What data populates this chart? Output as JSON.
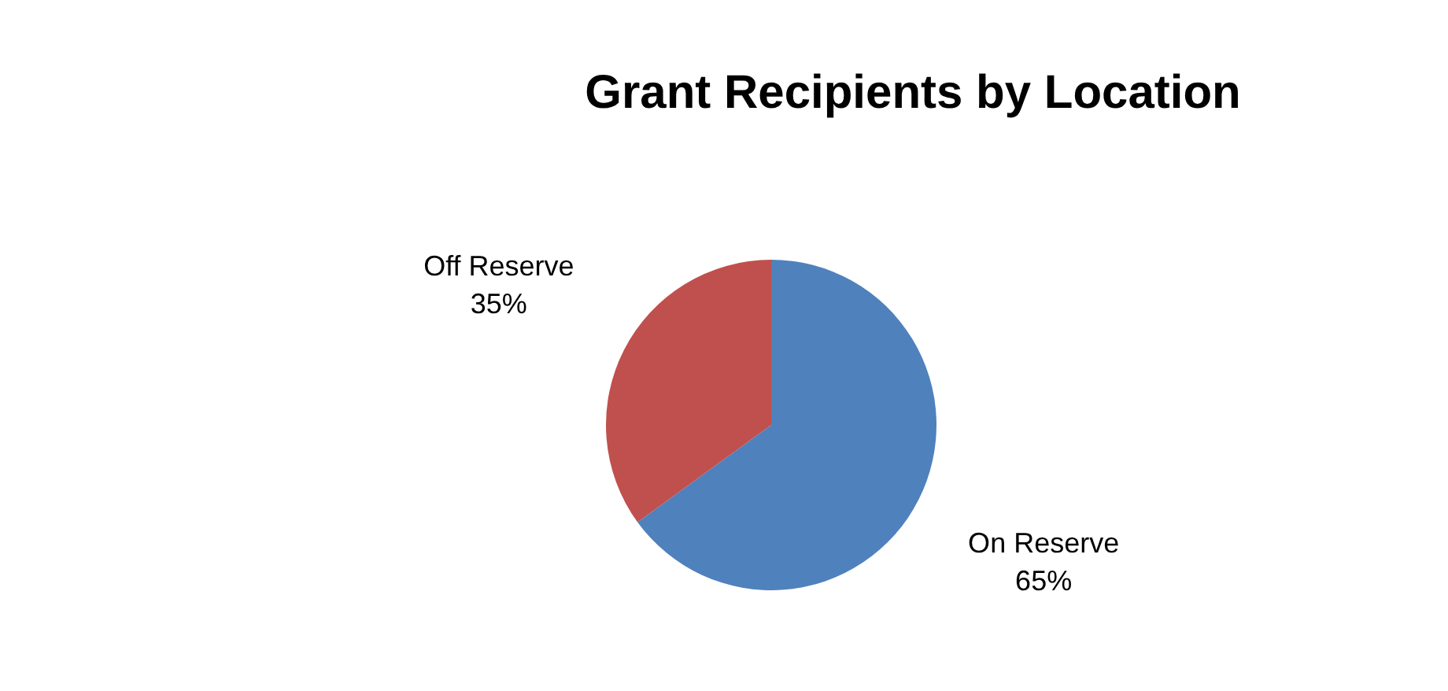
{
  "chart_data": {
    "type": "pie",
    "title": "Grant Recipients by Location",
    "categories": [
      "On Reserve",
      "Off Reserve"
    ],
    "values": [
      65,
      35
    ],
    "colors": [
      "#4f81bd",
      "#c0504d"
    ],
    "value_labels": [
      "65%",
      "35%"
    ],
    "legend": false
  }
}
